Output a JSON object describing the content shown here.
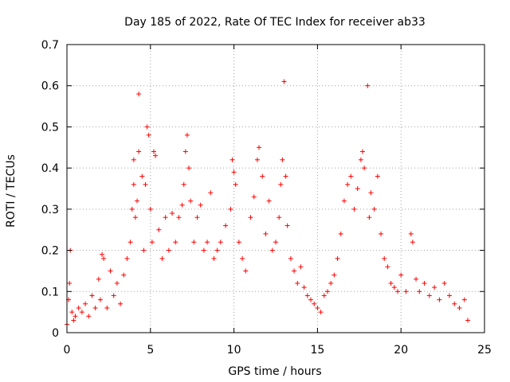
{
  "chart_data": {
    "type": "scatter",
    "title": "Day 185 of 2022, Rate Of TEC Index for receiver ab33",
    "xlabel": "GPS time / hours",
    "ylabel": "ROTI / TECUs",
    "xlim": [
      0,
      25
    ],
    "ylim": [
      0,
      0.7
    ],
    "xticks": [
      0,
      5,
      10,
      15,
      20,
      25
    ],
    "xtick_labels": [
      "0",
      "5",
      "10",
      "15",
      "20",
      "25"
    ],
    "yticks": [
      0,
      0.1,
      0.2,
      0.3,
      0.4,
      0.5,
      0.6,
      0.7
    ],
    "ytick_labels": [
      "0",
      "0.1",
      "0.2",
      "0.3",
      "0.4",
      "0.5",
      "0.6",
      "0.7"
    ],
    "grid": true,
    "marker": "+",
    "color": "#ff0000",
    "series": [
      {
        "name": "ROTI",
        "points": [
          [
            0.0,
            0.02
          ],
          [
            0.1,
            0.08
          ],
          [
            0.15,
            0.12
          ],
          [
            0.2,
            0.2
          ],
          [
            0.3,
            0.05
          ],
          [
            0.4,
            0.03
          ],
          [
            0.5,
            0.04
          ],
          [
            0.7,
            0.06
          ],
          [
            0.9,
            0.05
          ],
          [
            1.1,
            0.07
          ],
          [
            1.3,
            0.04
          ],
          [
            1.5,
            0.09
          ],
          [
            1.7,
            0.06
          ],
          [
            1.9,
            0.13
          ],
          [
            2.0,
            0.08
          ],
          [
            2.1,
            0.19
          ],
          [
            2.2,
            0.18
          ],
          [
            2.4,
            0.06
          ],
          [
            2.6,
            0.15
          ],
          [
            2.8,
            0.09
          ],
          [
            3.0,
            0.12
          ],
          [
            3.2,
            0.07
          ],
          [
            3.4,
            0.14
          ],
          [
            3.6,
            0.18
          ],
          [
            3.8,
            0.22
          ],
          [
            3.9,
            0.3
          ],
          [
            4.0,
            0.36
          ],
          [
            4.0,
            0.42
          ],
          [
            4.1,
            0.28
          ],
          [
            4.2,
            0.32
          ],
          [
            4.3,
            0.44
          ],
          [
            4.3,
            0.58
          ],
          [
            4.5,
            0.38
          ],
          [
            4.6,
            0.2
          ],
          [
            4.7,
            0.36
          ],
          [
            4.8,
            0.5
          ],
          [
            4.9,
            0.48
          ],
          [
            5.0,
            0.3
          ],
          [
            5.1,
            0.22
          ],
          [
            5.2,
            0.44
          ],
          [
            5.3,
            0.43
          ],
          [
            5.5,
            0.25
          ],
          [
            5.7,
            0.18
          ],
          [
            5.9,
            0.28
          ],
          [
            6.1,
            0.2
          ],
          [
            6.3,
            0.29
          ],
          [
            6.5,
            0.22
          ],
          [
            6.7,
            0.28
          ],
          [
            6.9,
            0.31
          ],
          [
            7.0,
            0.36
          ],
          [
            7.1,
            0.44
          ],
          [
            7.2,
            0.48
          ],
          [
            7.3,
            0.4
          ],
          [
            7.4,
            0.32
          ],
          [
            7.6,
            0.22
          ],
          [
            7.8,
            0.28
          ],
          [
            8.0,
            0.31
          ],
          [
            8.2,
            0.2
          ],
          [
            8.4,
            0.22
          ],
          [
            8.6,
            0.34
          ],
          [
            8.8,
            0.18
          ],
          [
            9.0,
            0.2
          ],
          [
            9.2,
            0.22
          ],
          [
            9.5,
            0.26
          ],
          [
            9.8,
            0.3
          ],
          [
            9.9,
            0.42
          ],
          [
            10.0,
            0.39
          ],
          [
            10.1,
            0.36
          ],
          [
            10.3,
            0.22
          ],
          [
            10.5,
            0.18
          ],
          [
            10.7,
            0.15
          ],
          [
            11.0,
            0.28
          ],
          [
            11.2,
            0.33
          ],
          [
            11.4,
            0.42
          ],
          [
            11.5,
            0.45
          ],
          [
            11.7,
            0.38
          ],
          [
            11.9,
            0.24
          ],
          [
            12.1,
            0.32
          ],
          [
            12.3,
            0.2
          ],
          [
            12.5,
            0.22
          ],
          [
            12.7,
            0.28
          ],
          [
            12.8,
            0.36
          ],
          [
            12.9,
            0.42
          ],
          [
            13.0,
            0.61
          ],
          [
            13.1,
            0.38
          ],
          [
            13.2,
            0.26
          ],
          [
            13.4,
            0.18
          ],
          [
            13.6,
            0.15
          ],
          [
            13.8,
            0.12
          ],
          [
            14.0,
            0.16
          ],
          [
            14.2,
            0.11
          ],
          [
            14.4,
            0.09
          ],
          [
            14.6,
            0.08
          ],
          [
            14.8,
            0.07
          ],
          [
            15.0,
            0.06
          ],
          [
            15.2,
            0.05
          ],
          [
            15.4,
            0.09
          ],
          [
            15.6,
            0.1
          ],
          [
            15.8,
            0.12
          ],
          [
            16.0,
            0.14
          ],
          [
            16.2,
            0.18
          ],
          [
            16.4,
            0.24
          ],
          [
            16.6,
            0.32
          ],
          [
            16.8,
            0.36
          ],
          [
            17.0,
            0.38
          ],
          [
            17.2,
            0.3
          ],
          [
            17.4,
            0.35
          ],
          [
            17.6,
            0.42
          ],
          [
            17.7,
            0.44
          ],
          [
            17.8,
            0.4
          ],
          [
            18.0,
            0.6
          ],
          [
            18.1,
            0.28
          ],
          [
            18.2,
            0.34
          ],
          [
            18.4,
            0.3
          ],
          [
            18.6,
            0.38
          ],
          [
            18.8,
            0.24
          ],
          [
            19.0,
            0.18
          ],
          [
            19.2,
            0.16
          ],
          [
            19.4,
            0.12
          ],
          [
            19.6,
            0.11
          ],
          [
            19.8,
            0.1
          ],
          [
            20.0,
            0.14
          ],
          [
            20.3,
            0.1
          ],
          [
            20.6,
            0.24
          ],
          [
            20.7,
            0.22
          ],
          [
            20.9,
            0.13
          ],
          [
            21.1,
            0.1
          ],
          [
            21.4,
            0.12
          ],
          [
            21.7,
            0.09
          ],
          [
            22.0,
            0.11
          ],
          [
            22.3,
            0.08
          ],
          [
            22.6,
            0.12
          ],
          [
            22.9,
            0.09
          ],
          [
            23.2,
            0.07
          ],
          [
            23.5,
            0.06
          ],
          [
            23.8,
            0.08
          ],
          [
            24.0,
            0.03
          ]
        ]
      }
    ]
  }
}
